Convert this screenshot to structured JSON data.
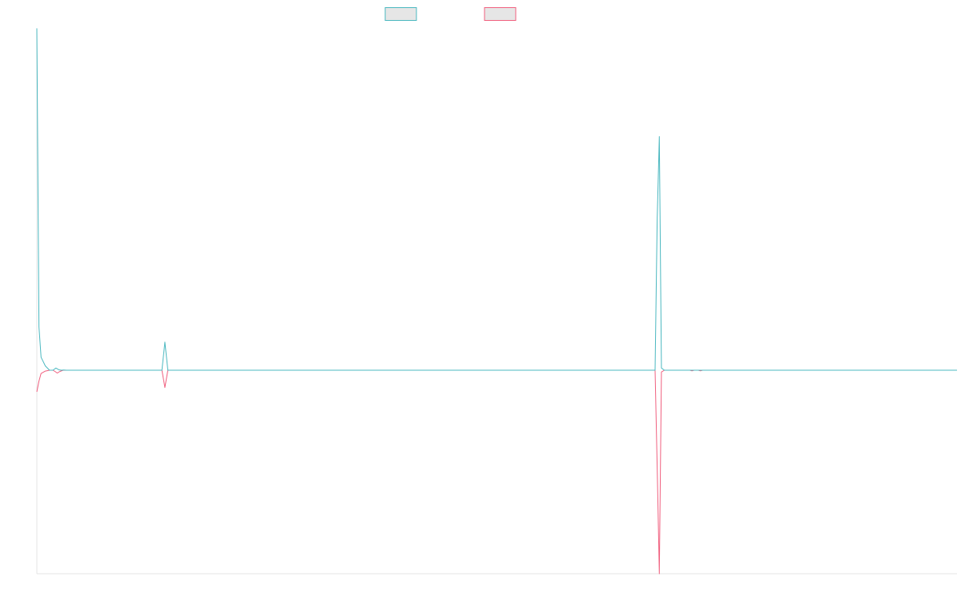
{
  "chart_data": {
    "type": "line",
    "title": "",
    "xlabel": "",
    "ylabel": "",
    "grid": false,
    "legend_position": "top-center",
    "x_count": 218,
    "ylim": [
      -1.0,
      1.65
    ],
    "series": [
      {
        "name": "",
        "color": "#4bb8c0",
        "fill": "#e6e6e6",
        "points": [
          [
            0,
            1.58
          ],
          [
            0.5,
            0.2
          ],
          [
            1,
            0.06
          ],
          [
            2,
            0.02
          ],
          [
            3,
            0.0
          ],
          [
            3.8,
            0.0
          ],
          [
            4.5,
            0.01
          ],
          [
            5.2,
            0.002
          ],
          [
            5.8,
            0.0
          ],
          [
            6.3,
            0.001
          ],
          [
            7,
            0.0
          ],
          [
            29.5,
            0.0
          ],
          [
            30.2,
            0.13
          ],
          [
            30.9,
            0.0
          ],
          [
            31.5,
            0.0
          ],
          [
            145.8,
            0.0
          ],
          [
            146.3,
            0.7
          ],
          [
            146.8,
            1.08
          ],
          [
            147.3,
            0.01
          ],
          [
            148,
            0.0
          ],
          [
            217,
            0.0
          ]
        ]
      },
      {
        "name": "",
        "color": "#f0607f",
        "fill": "#e6e6e6",
        "points": [
          [
            0,
            -0.1
          ],
          [
            0.5,
            -0.05
          ],
          [
            1,
            -0.015
          ],
          [
            2,
            -0.004
          ],
          [
            3,
            0.0
          ],
          [
            3.8,
            0.0
          ],
          [
            4.3,
            -0.006
          ],
          [
            4.8,
            -0.013
          ],
          [
            5.4,
            -0.006
          ],
          [
            6.2,
            0.0
          ],
          [
            29.5,
            0.0
          ],
          [
            30.2,
            -0.08
          ],
          [
            30.9,
            0.0
          ],
          [
            145.8,
            0.0
          ],
          [
            146.3,
            -0.45
          ],
          [
            146.8,
            -0.98
          ],
          [
            147.3,
            -0.008
          ],
          [
            148,
            0.0
          ],
          [
            154,
            0.0
          ],
          [
            154.5,
            -0.003
          ],
          [
            155,
            0.0
          ],
          [
            156,
            0.0
          ],
          [
            156.5,
            -0.003
          ],
          [
            157,
            0.0
          ],
          [
            217,
            0.0
          ]
        ]
      }
    ]
  }
}
